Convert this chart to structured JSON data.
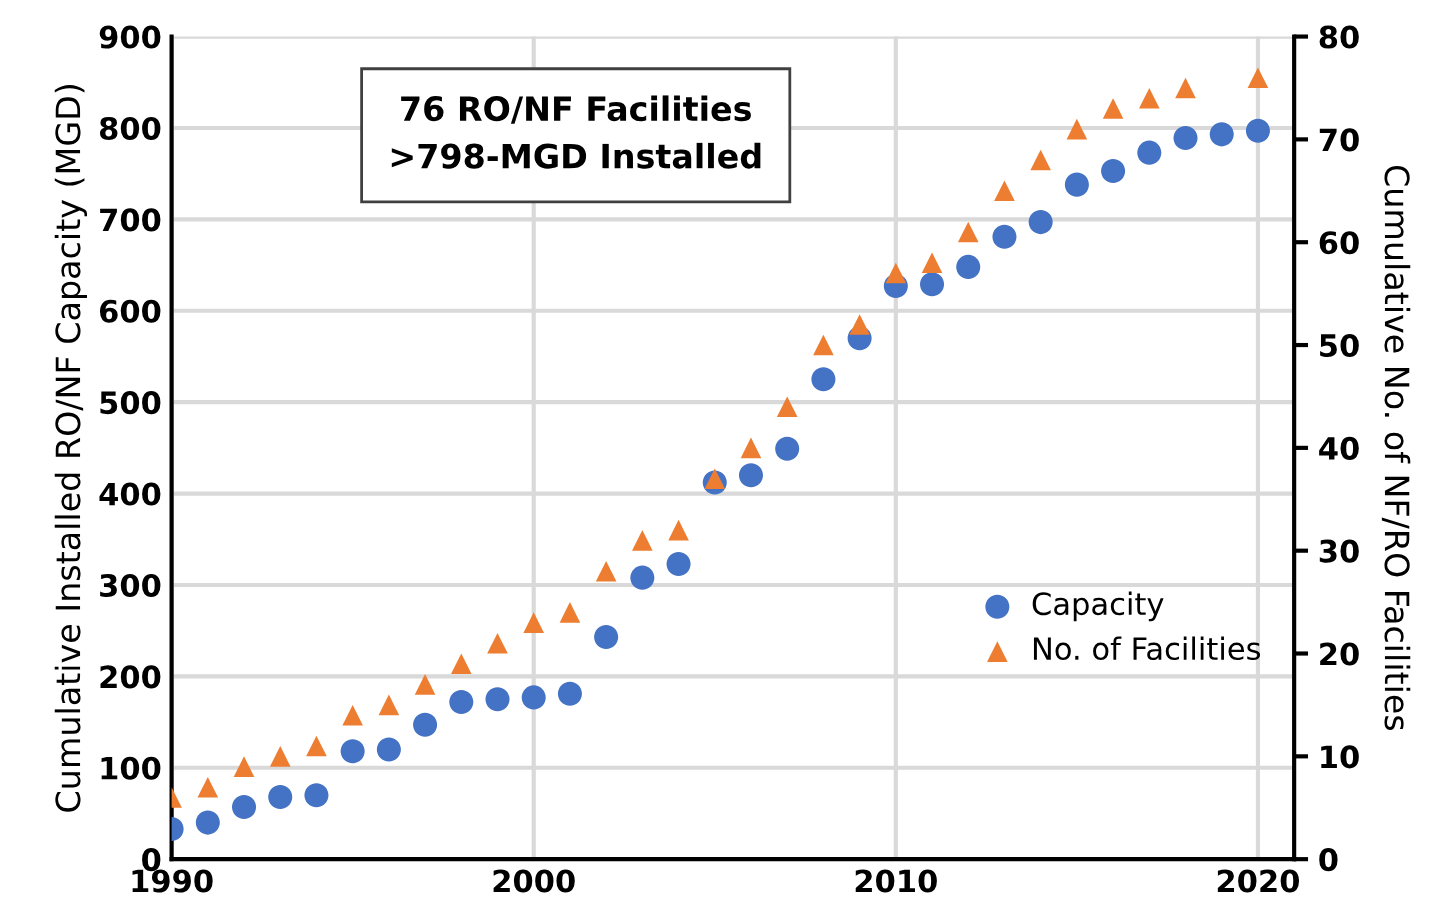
{
  "chart_data": {
    "type": "scatter",
    "xlabel": null,
    "ylabel": "Cumulative Installed RO/NF Capacity (MGD)",
    "y2label": "Cumulative No. of NF/RO Facilities",
    "annotations": [
      "76 RO/NF Facilities\n>798-MGD Installed"
    ],
    "x": [
      1990,
      1991,
      1992,
      1993,
      1994,
      1995,
      1996,
      1997,
      1998,
      1999,
      2000,
      2001,
      2002,
      2003,
      2004,
      2005,
      2006,
      2007,
      2008,
      2009,
      2010,
      2011,
      2012,
      2013,
      2014,
      2015,
      2016,
      2017,
      2018,
      2019,
      2020
    ],
    "series": [
      {
        "name": "Capacity",
        "color": "#4472c4",
        "marker": "circle",
        "values": [
          33,
          40,
          57,
          68,
          70,
          118,
          120,
          147,
          172,
          175,
          177,
          181,
          243,
          308,
          323,
          412,
          420,
          449,
          525,
          570,
          627,
          629,
          648,
          681,
          697,
          738,
          753,
          773,
          789,
          793,
          797
        ]
      },
      {
        "name": "No. of Facilities",
        "color": "#ed7d31",
        "marker": "triangle",
        "axis": "y2",
        "values": [
          6,
          7,
          9,
          10,
          11,
          14,
          15,
          17,
          19,
          21,
          23,
          24,
          28,
          31,
          32,
          37,
          40,
          44,
          50,
          52,
          57,
          58,
          61,
          65,
          68,
          71,
          73,
          74,
          75,
          null,
          76
        ]
      }
    ],
    "xlim": [
      1990,
      2021
    ],
    "xticks": [
      1990,
      2000,
      2010,
      2020
    ],
    "ylim": [
      0,
      900
    ],
    "yticks": [
      0,
      100,
      200,
      300,
      400,
      500,
      600,
      700,
      800,
      900
    ],
    "y2lim": [
      0,
      80
    ],
    "y2ticks": [
      0,
      10,
      20,
      30,
      40,
      50,
      60,
      70,
      80
    ],
    "grid": true,
    "legend": "right"
  }
}
